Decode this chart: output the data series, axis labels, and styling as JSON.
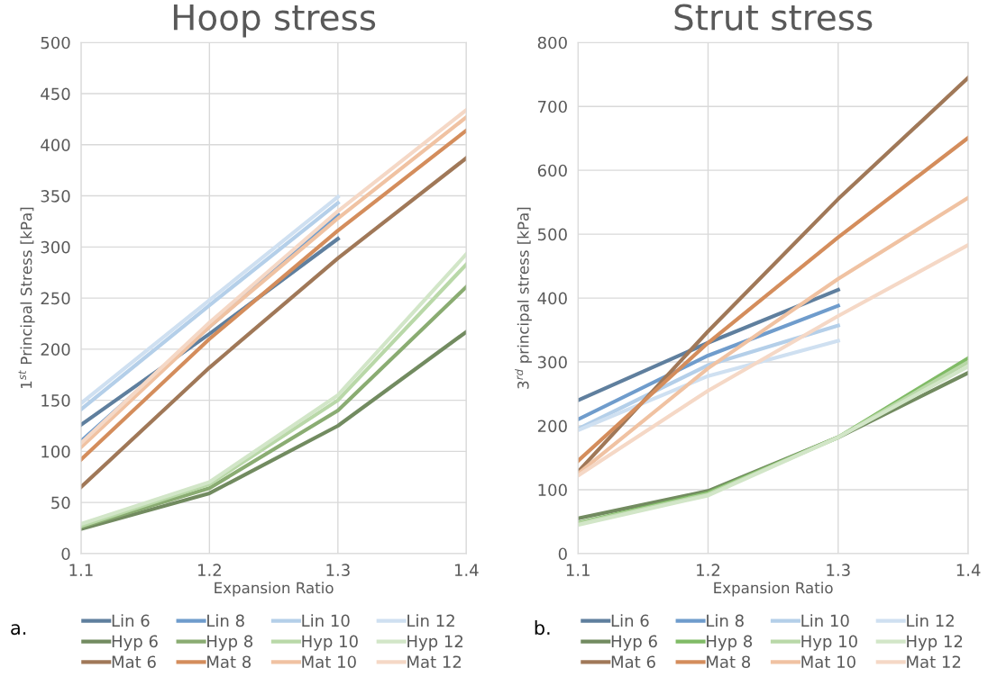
{
  "chart_data": [
    {
      "type": "line",
      "title": "Hoop stress",
      "xlabel": "Expansion Ratio",
      "ylabel": "1$^{st}$ Principal Stress [kPa]",
      "x": [
        1.1,
        1.2,
        1.3,
        1.4
      ],
      "xlim": [
        1.1,
        1.4
      ],
      "xticks": [
        1.1,
        1.2,
        1.3,
        1.4
      ],
      "ylim": [
        0,
        500
      ],
      "yticks": [
        0,
        50,
        100,
        150,
        200,
        250,
        300,
        350,
        400,
        450,
        500
      ],
      "grid": true,
      "legend": "bottom",
      "annotations": [
        "a."
      ],
      "series": [
        {
          "name": "Lin 6",
          "color": "#5f7f9e",
          "values": [
            126,
            215,
            308,
            null
          ]
        },
        {
          "name": "Lin 8",
          "color": "#6f9ccc",
          "values": [
            110,
            222,
            332,
            null
          ]
        },
        {
          "name": "Lin 10",
          "color": "#b4cfe9",
          "values": [
            141,
            243,
            343,
            null
          ]
        },
        {
          "name": "Lin 12",
          "color": "#cfe0f1",
          "values": [
            147,
            248,
            349,
            null
          ]
        },
        {
          "name": "Hyp 6",
          "color": "#728b60",
          "values": [
            24,
            59,
            125,
            217
          ]
        },
        {
          "name": "Hyp 8",
          "color": "#8aac72",
          "values": [
            26,
            64,
            140,
            261
          ]
        },
        {
          "name": "Hyp 10",
          "color": "#b9d8a8",
          "values": [
            27,
            68,
            150,
            283
          ]
        },
        {
          "name": "Hyp 12",
          "color": "#d2e6c8",
          "values": [
            29,
            70,
            155,
            293
          ]
        },
        {
          "name": "Mat 6",
          "color": "#a07858",
          "values": [
            65,
            182,
            289,
            387
          ]
        },
        {
          "name": "Mat 8",
          "color": "#d48d5c",
          "values": [
            92,
            210,
            316,
            414
          ]
        },
        {
          "name": "Mat 10",
          "color": "#f0c2a2",
          "values": [
            104,
            222,
            328,
            427
          ]
        },
        {
          "name": "Mat 12",
          "color": "#f5d8c6",
          "values": [
            108,
            226,
            335,
            434
          ]
        }
      ]
    },
    {
      "type": "line",
      "title": "Strut stress",
      "xlabel": "Expansion Ratio",
      "ylabel": "3$^{rd}$ principal stress [kPa]",
      "x": [
        1.1,
        1.2,
        1.3,
        1.4
      ],
      "xlim": [
        1.1,
        1.4
      ],
      "xticks": [
        1.1,
        1.2,
        1.3,
        1.4
      ],
      "ylim": [
        0,
        800
      ],
      "yticks": [
        0,
        100,
        200,
        300,
        400,
        500,
        600,
        700,
        800
      ],
      "grid": true,
      "legend": "bottom",
      "annotations": [
        "b."
      ],
      "series": [
        {
          "name": "Lin 6",
          "color": "#5f7f9e",
          "values": [
            240,
            330,
            413,
            null
          ]
        },
        {
          "name": "Lin 8",
          "color": "#6f9ccc",
          "values": [
            210,
            310,
            388,
            null
          ]
        },
        {
          "name": "Lin 10",
          "color": "#b4cfe9",
          "values": [
            195,
            295,
            357,
            null
          ]
        },
        {
          "name": "Lin 12",
          "color": "#cfe0f1",
          "values": [
            193,
            278,
            333,
            null
          ]
        },
        {
          "name": "Hyp 6",
          "color": "#728b60",
          "values": [
            55,
            98,
            182,
            283
          ]
        },
        {
          "name": "Hyp 8",
          "color": "#80bb66",
          "values": [
            48,
            95,
            182,
            306
          ]
        },
        {
          "name": "Hyp 10",
          "color": "#b9d8a8",
          "values": [
            47,
            93,
            182,
            300
          ]
        },
        {
          "name": "Hyp 12",
          "color": "#d2e6c8",
          "values": [
            45,
            91,
            182,
            293
          ]
        },
        {
          "name": "Mat 6",
          "color": "#a07858",
          "values": [
            128,
            348,
            555,
            745
          ]
        },
        {
          "name": "Mat 8",
          "color": "#d48d5c",
          "values": [
            145,
            330,
            495,
            651
          ]
        },
        {
          "name": "Mat 10",
          "color": "#f0c2a2",
          "values": [
            125,
            290,
            430,
            557
          ]
        },
        {
          "name": "Mat 12",
          "color": "#f5d8c6",
          "values": [
            122,
            255,
            372,
            483
          ]
        }
      ]
    }
  ]
}
